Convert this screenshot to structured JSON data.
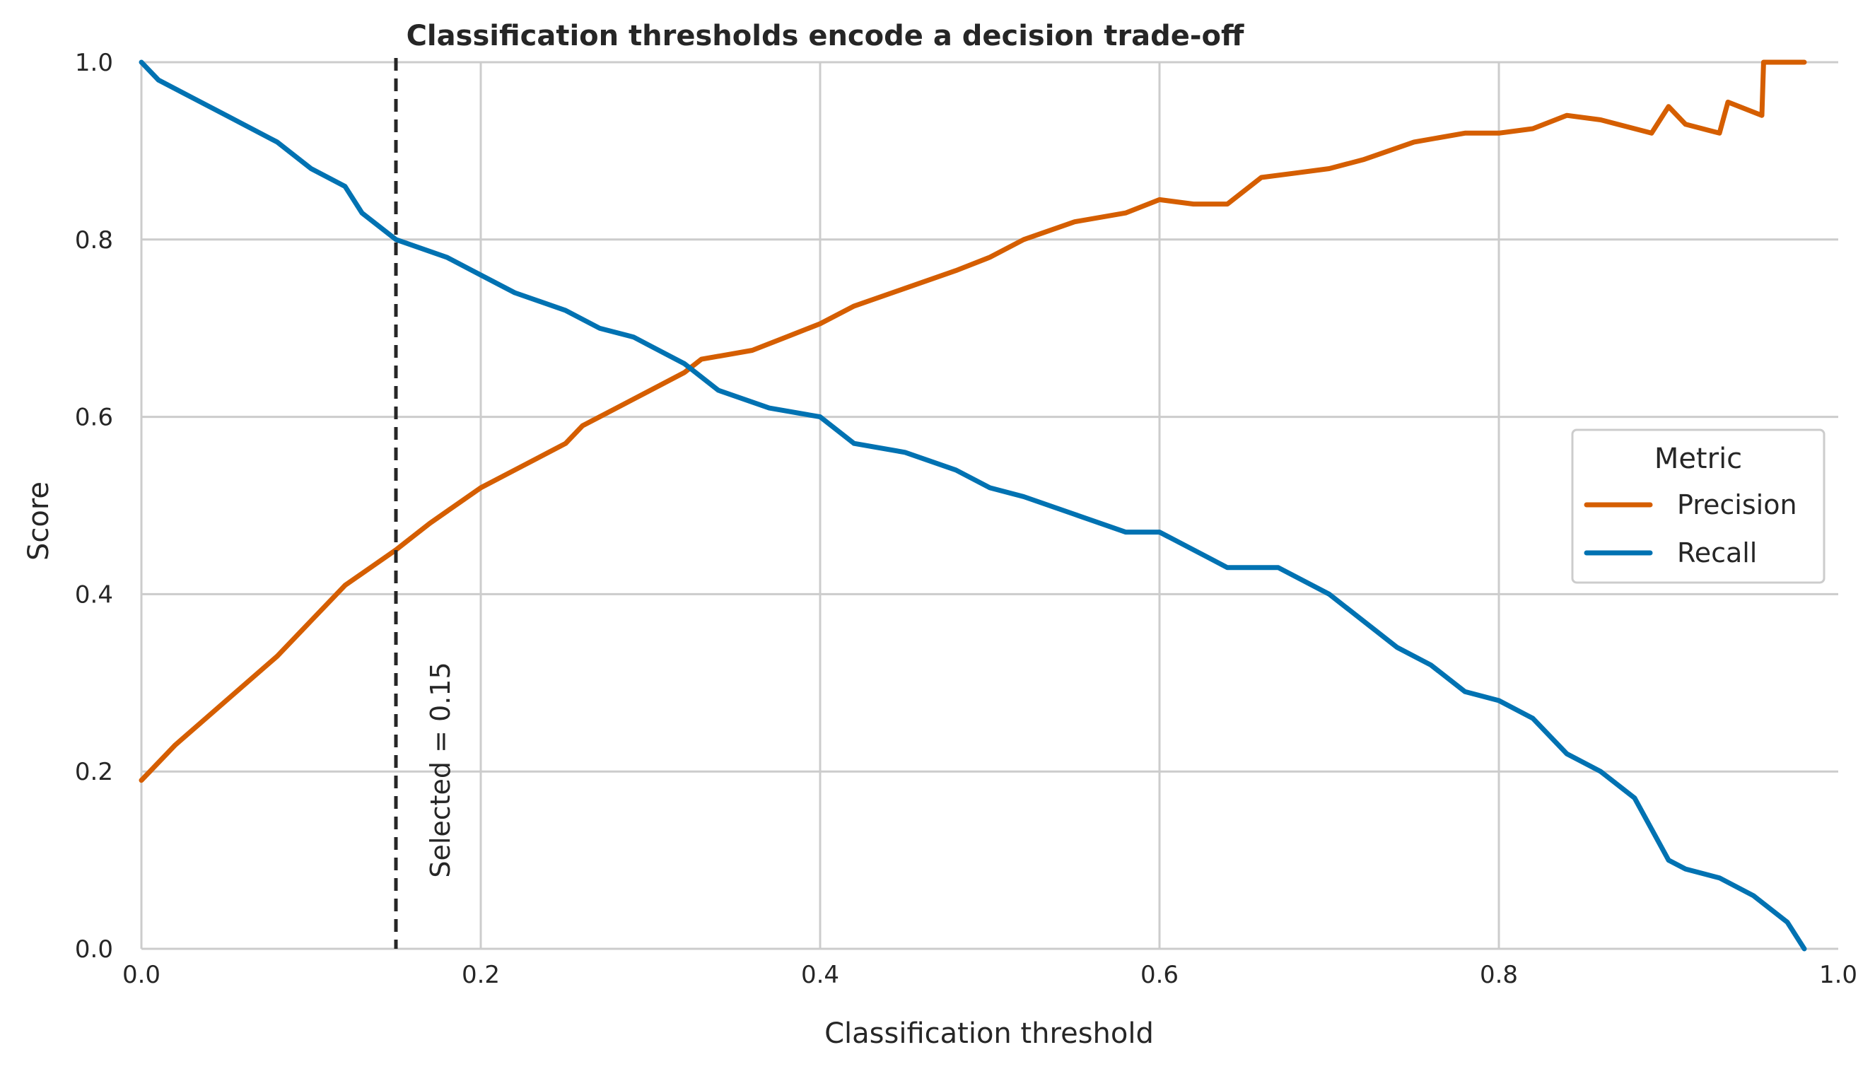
{
  "chart_data": {
    "type": "line",
    "title": "Classification thresholds encode a decision trade-off",
    "xlabel": "Classification threshold",
    "ylabel": "Score",
    "xlim": [
      0.0,
      1.0
    ],
    "ylim": [
      0.0,
      1.0
    ],
    "xticks": [
      "0.0",
      "0.2",
      "0.4",
      "0.6",
      "0.8",
      "1.0"
    ],
    "yticks": [
      "0.0",
      "0.2",
      "0.4",
      "0.6",
      "0.8",
      "1.0"
    ],
    "grid": true,
    "legend": {
      "title": "Metric",
      "placement": "center-right"
    },
    "colors": {
      "precision": "#d55e00",
      "recall": "#0072b2",
      "selected_line": "#262626",
      "grid": "#cccccc"
    },
    "annotation": {
      "label": "Selected = 0.15",
      "x": 0.15
    },
    "series": [
      {
        "name": "Precision",
        "color": "#d55e00",
        "x": [
          0.0,
          0.02,
          0.05,
          0.08,
          0.1,
          0.12,
          0.15,
          0.17,
          0.2,
          0.22,
          0.25,
          0.26,
          0.27,
          0.3,
          0.32,
          0.33,
          0.36,
          0.38,
          0.4,
          0.42,
          0.45,
          0.48,
          0.5,
          0.52,
          0.55,
          0.58,
          0.6,
          0.62,
          0.64,
          0.66,
          0.68,
          0.7,
          0.72,
          0.75,
          0.78,
          0.8,
          0.82,
          0.84,
          0.86,
          0.88,
          0.89,
          0.9,
          0.91,
          0.93,
          0.935,
          0.955,
          0.956,
          0.98
        ],
        "values": [
          0.19,
          0.23,
          0.28,
          0.33,
          0.37,
          0.41,
          0.45,
          0.48,
          0.52,
          0.54,
          0.57,
          0.59,
          0.6,
          0.63,
          0.65,
          0.665,
          0.675,
          0.69,
          0.705,
          0.725,
          0.745,
          0.765,
          0.78,
          0.8,
          0.82,
          0.83,
          0.845,
          0.84,
          0.84,
          0.87,
          0.875,
          0.88,
          0.89,
          0.91,
          0.92,
          0.92,
          0.925,
          0.94,
          0.935,
          0.925,
          0.92,
          0.95,
          0.93,
          0.92,
          0.955,
          0.94,
          1.0,
          1.0
        ]
      },
      {
        "name": "Recall",
        "color": "#0072b2",
        "x": [
          0.0,
          0.01,
          0.03,
          0.05,
          0.08,
          0.1,
          0.12,
          0.13,
          0.15,
          0.18,
          0.2,
          0.22,
          0.25,
          0.27,
          0.29,
          0.3,
          0.32,
          0.34,
          0.37,
          0.4,
          0.42,
          0.45,
          0.48,
          0.5,
          0.52,
          0.55,
          0.58,
          0.6,
          0.63,
          0.64,
          0.67,
          0.7,
          0.72,
          0.74,
          0.76,
          0.78,
          0.8,
          0.82,
          0.84,
          0.86,
          0.88,
          0.9,
          0.91,
          0.93,
          0.95,
          0.97,
          0.98
        ],
        "values": [
          1.0,
          0.98,
          0.96,
          0.94,
          0.91,
          0.88,
          0.86,
          0.83,
          0.8,
          0.78,
          0.76,
          0.74,
          0.72,
          0.7,
          0.69,
          0.68,
          0.66,
          0.63,
          0.61,
          0.6,
          0.57,
          0.56,
          0.54,
          0.52,
          0.51,
          0.49,
          0.47,
          0.47,
          0.44,
          0.43,
          0.43,
          0.4,
          0.37,
          0.34,
          0.32,
          0.29,
          0.28,
          0.26,
          0.22,
          0.2,
          0.17,
          0.1,
          0.09,
          0.08,
          0.06,
          0.03,
          0.0
        ]
      }
    ]
  }
}
